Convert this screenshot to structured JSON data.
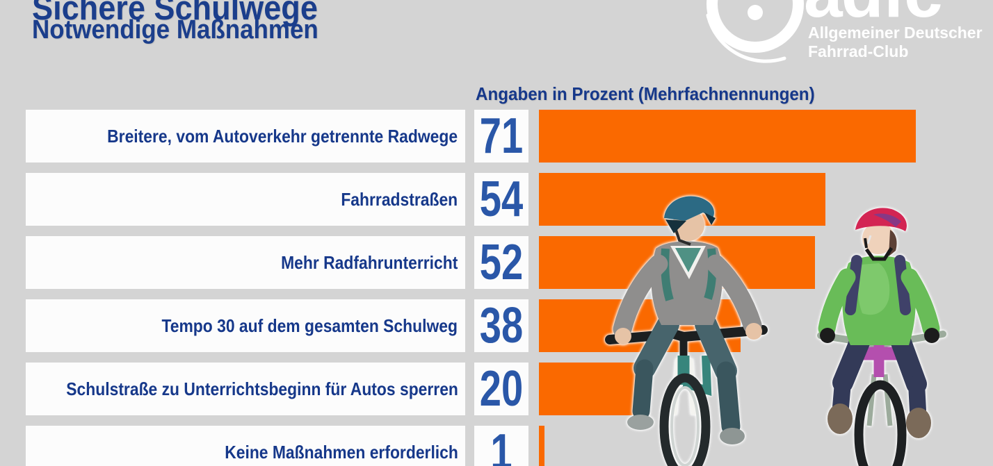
{
  "header": {
    "title": "Sichere Schulwege",
    "subtitle": "Notwendige Maßnahmen"
  },
  "logo": {
    "brand": "adfc",
    "line1": "Allgemeiner Deutscher",
    "line2": "Fahrrad-Club",
    "wheel_icon": "bicycle-wheel-with-hub"
  },
  "chart_data": {
    "type": "bar",
    "orientation": "horizontal",
    "title": "Angaben in Prozent (Mehrfachnennungen)",
    "categories": [
      "Breitere, vom Autoverkehr getrennte Radwege",
      "Fahrradstraßen",
      "Mehr Radfahrunterricht",
      "Tempo 30 auf dem gesamten Schulweg",
      "Schulstraße zu Unterrichtsbeginn für Autos sperren",
      "Keine Maßnahmen erforderlich"
    ],
    "values": [
      71,
      54,
      52,
      38,
      20,
      1
    ],
    "unit": "percent",
    "xlim": [
      0,
      85
    ],
    "grid": false,
    "legend": "none",
    "value_labels_shown": true
  },
  "colors": {
    "background": "#d4d4d4",
    "bar_orange": "#fa6900",
    "heading_blue": "#1b3e8c",
    "label_blue": "#16388a",
    "value_blue": "#2a57a8",
    "box_white": "#fcfcfc",
    "logo_white": "#ffffff"
  },
  "illustration": {
    "name": "two-children-riding-bicycles-with-helmets"
  }
}
